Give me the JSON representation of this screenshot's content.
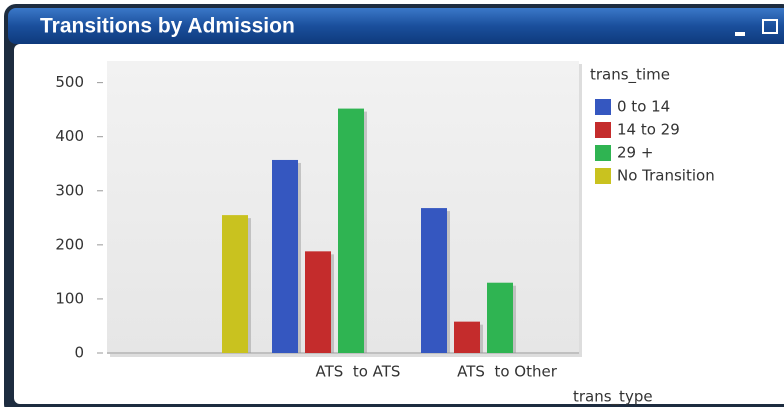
{
  "chart_data": {
    "type": "bar",
    "title": "Transitions by Admission",
    "categories": [
      null,
      "ATS  to ATS",
      "ATS  to Other"
    ],
    "series": [
      {
        "name": "0 to 14",
        "color": "#3557c0",
        "values": [
          null,
          357,
          268
        ]
      },
      {
        "name": "14 to 29",
        "color": "#c42c2c",
        "values": [
          null,
          188,
          58
        ]
      },
      {
        "name": "29 +",
        "color": "#2fb452",
        "values": [
          null,
          452,
          130
        ]
      },
      {
        "name": "No Transition",
        "color": "#c9c21f",
        "values": [
          255,
          null,
          null
        ]
      }
    ],
    "legend_title": "trans_time",
    "xlabel": "trans_type",
    "ylim": [
      0,
      540
    ],
    "yticks": [
      0,
      100,
      200,
      300,
      400,
      500
    ],
    "legend": "right"
  }
}
